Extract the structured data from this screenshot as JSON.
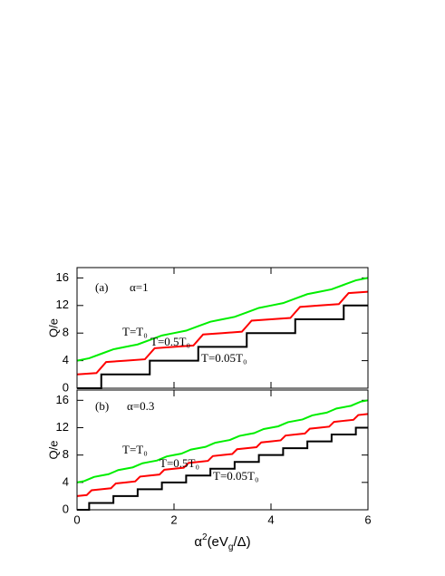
{
  "chart_data": [
    {
      "type": "line",
      "panel_label": "(a)",
      "annotation": "α=1",
      "ylabel": "Q/e",
      "xlim": [
        0,
        6
      ],
      "xticks": [
        0,
        2,
        4,
        6
      ],
      "ylim": [
        0,
        17.5
      ],
      "yticks": [
        0,
        4,
        8,
        12,
        16
      ],
      "series": [
        {
          "name": "T=T₀",
          "color": "#00ee00",
          "x": [
            0,
            0.25,
            0.5,
            0.75,
            1,
            1.25,
            1.5,
            1.75,
            2,
            2.25,
            2.5,
            2.75,
            3,
            3.25,
            3.5,
            3.75,
            4,
            4.25,
            4.5,
            4.75,
            5,
            5.25,
            5.5,
            5.75,
            6
          ],
          "values": [
            4,
            4.35,
            5,
            5.65,
            6,
            6.35,
            7,
            7.65,
            8,
            8.35,
            9,
            9.65,
            10,
            10.35,
            11,
            11.65,
            12,
            12.35,
            13,
            13.65,
            14,
            14.35,
            15,
            15.65,
            16
          ]
        },
        {
          "name": "T=0.5T₀",
          "color": "#ff0000",
          "x": [
            0,
            0.4,
            0.5,
            0.6,
            1,
            1.4,
            1.5,
            1.6,
            2,
            2.4,
            2.5,
            2.6,
            3,
            3.4,
            3.5,
            3.6,
            4,
            4.4,
            4.5,
            4.6,
            5,
            5.4,
            5.5,
            5.6,
            6
          ],
          "values": [
            2,
            2.2,
            3,
            3.8,
            4,
            4.2,
            5,
            5.8,
            6,
            6.2,
            7,
            7.8,
            8,
            8.2,
            9,
            9.8,
            10,
            10.2,
            11,
            11.8,
            12,
            12.2,
            13,
            13.8,
            14
          ]
        },
        {
          "name": "T=0.05T₀",
          "color": "#000000",
          "x": [
            0,
            0.5,
            0.5,
            1.5,
            1.5,
            2.5,
            2.5,
            3.5,
            3.5,
            4.5,
            4.5,
            5.5,
            5.5,
            6
          ],
          "values": [
            0,
            0,
            2,
            2,
            4,
            4,
            6,
            6,
            8,
            8,
            10,
            10,
            12,
            12
          ]
        }
      ]
    },
    {
      "type": "line",
      "panel_label": "(b)",
      "annotation": "α=0.3",
      "ylabel": "Q/e",
      "xlabel_parts": [
        "α",
        "2",
        "(eV",
        "g",
        "/Δ)"
      ],
      "xlim": [
        0,
        6
      ],
      "xticks": [
        0,
        2,
        4,
        6
      ],
      "ylim": [
        0,
        17.5
      ],
      "yticks": [
        0,
        4,
        8,
        12,
        16
      ],
      "series": [
        {
          "name": "T=T₀",
          "color": "#00ee00",
          "x": [
            0,
            0.15,
            0.25,
            0.35,
            0.5,
            0.65,
            0.75,
            0.85,
            1,
            1.15,
            1.25,
            1.35,
            1.5,
            1.65,
            1.75,
            1.85,
            2,
            2.15,
            2.25,
            2.35,
            2.5,
            2.65,
            2.75,
            2.85,
            3,
            3.15,
            3.25,
            3.35,
            3.5,
            3.65,
            3.75,
            3.85,
            4,
            4.15,
            4.25,
            4.35,
            4.5,
            4.65,
            4.75,
            4.85,
            5,
            5.15,
            5.25,
            5.35,
            5.5,
            5.65,
            5.75,
            5.85,
            6
          ],
          "values": [
            4,
            4.2,
            4.5,
            4.8,
            5,
            5.2,
            5.5,
            5.8,
            6,
            6.2,
            6.5,
            6.8,
            7,
            7.2,
            7.5,
            7.8,
            8,
            8.2,
            8.5,
            8.8,
            9,
            9.2,
            9.5,
            9.8,
            10,
            10.2,
            10.5,
            10.8,
            11,
            11.2,
            11.5,
            11.8,
            12,
            12.2,
            12.5,
            12.8,
            13,
            13.2,
            13.5,
            13.8,
            14,
            14.2,
            14.5,
            14.8,
            15,
            15.2,
            15.5,
            15.8,
            16
          ]
        },
        {
          "name": "T=0.5T₀",
          "color": "#ff0000",
          "x": [
            0,
            0.2,
            0.25,
            0.3,
            0.5,
            0.7,
            0.75,
            0.8,
            1,
            1.2,
            1.25,
            1.3,
            1.5,
            1.7,
            1.75,
            1.8,
            2,
            2.2,
            2.25,
            2.3,
            2.5,
            2.7,
            2.75,
            2.8,
            3,
            3.2,
            3.25,
            3.3,
            3.5,
            3.7,
            3.75,
            3.8,
            4,
            4.2,
            4.25,
            4.3,
            4.5,
            4.7,
            4.75,
            4.8,
            5,
            5.2,
            5.25,
            5.3,
            5.5,
            5.7,
            5.75,
            5.8,
            6
          ],
          "values": [
            2,
            2.15,
            2.5,
            2.85,
            3,
            3.15,
            3.5,
            3.85,
            4,
            4.15,
            4.5,
            4.85,
            5,
            5.15,
            5.5,
            5.85,
            6,
            6.15,
            6.5,
            6.85,
            7,
            7.15,
            7.5,
            7.85,
            8,
            8.15,
            8.5,
            8.85,
            9,
            9.15,
            9.5,
            9.85,
            10,
            10.15,
            10.5,
            10.85,
            11,
            11.15,
            11.5,
            11.85,
            12,
            12.15,
            12.5,
            12.85,
            13,
            13.15,
            13.5,
            13.85,
            14
          ]
        },
        {
          "name": "T=0.05T₀",
          "color": "#000000",
          "x": [
            0,
            0.25,
            0.25,
            0.75,
            0.75,
            1.25,
            1.25,
            1.75,
            1.75,
            2.25,
            2.25,
            2.75,
            2.75,
            3.25,
            3.25,
            3.75,
            3.75,
            4.25,
            4.25,
            4.75,
            4.75,
            5.25,
            5.25,
            5.75,
            5.75,
            6
          ],
          "values": [
            0,
            0,
            1,
            1,
            2,
            2,
            3,
            3,
            4,
            4,
            5,
            5,
            6,
            6,
            7,
            7,
            8,
            8,
            9,
            9,
            10,
            10,
            11,
            11,
            12,
            12
          ]
        }
      ]
    }
  ]
}
